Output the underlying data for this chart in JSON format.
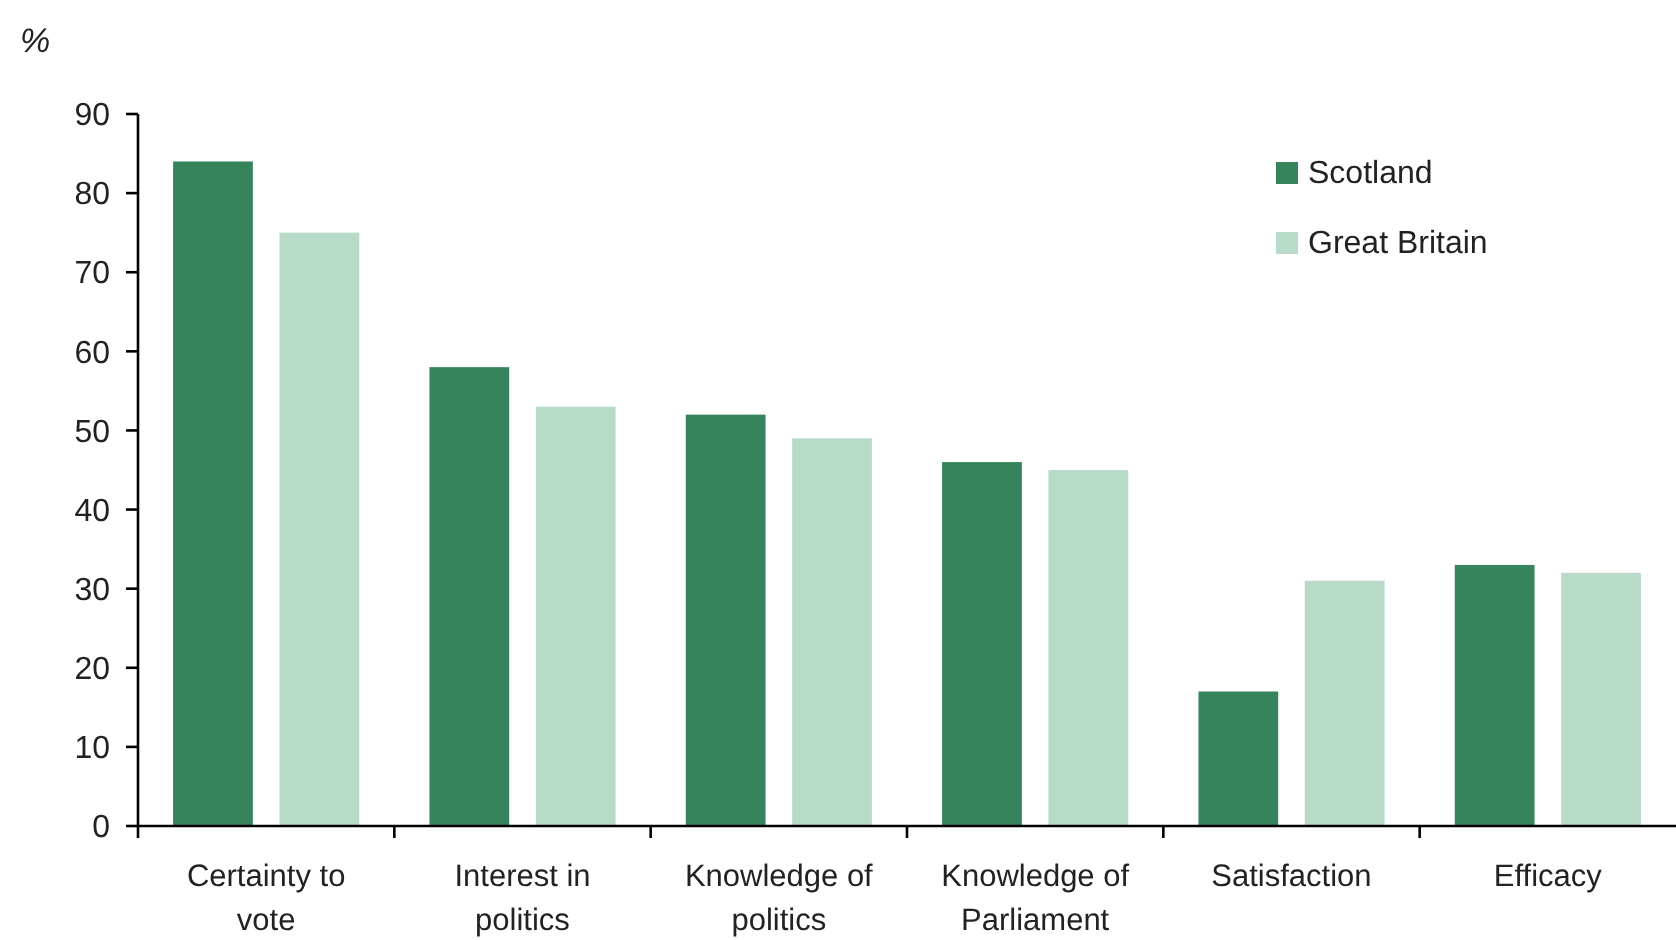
{
  "chart_data": {
    "type": "bar",
    "ylabel": "%",
    "categories": [
      "Certainty to vote",
      "Interest in politics",
      "Knowledge of politics",
      "Knowledge of Parliament",
      "Satisfaction",
      "Efficacy"
    ],
    "series": [
      {
        "name": "Scotland",
        "color": "#36845c",
        "values": [
          84,
          58,
          52,
          46,
          17,
          33
        ]
      },
      {
        "name": "Great Britain",
        "color": "#b8dac9",
        "values": [
          75,
          53,
          49,
          45,
          31,
          32
        ]
      }
    ],
    "ylim": [
      0,
      90
    ],
    "yticks": [
      0,
      10,
      20,
      30,
      40,
      50,
      60,
      70,
      80,
      90
    ],
    "grid": false,
    "legend": "top right"
  }
}
